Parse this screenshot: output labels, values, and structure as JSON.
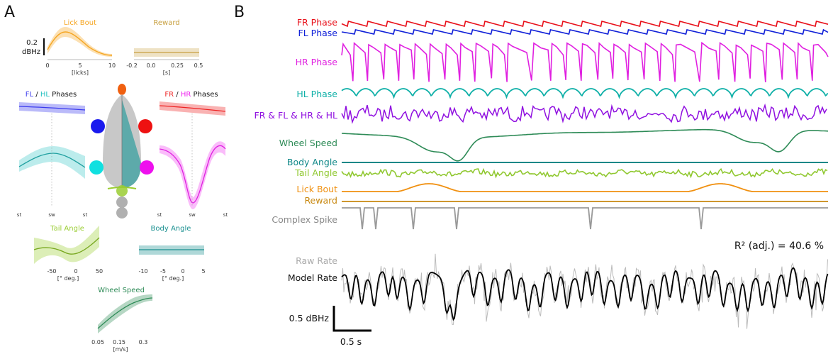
{
  "panel_a": {
    "label": "A",
    "lick_bout": {
      "title": "Lick Bout",
      "scale_value": "0.2",
      "scale_unit": "dBHz",
      "ticks": [
        "0",
        "5",
        "10"
      ],
      "unit": "[licks]",
      "color": "#f5a623"
    },
    "reward": {
      "title": "Reward",
      "ticks": [
        "-0.2",
        "0.0",
        "0.25",
        "0.5"
      ],
      "unit": "[s]",
      "color": "#c8a040"
    },
    "fl_hl": {
      "title_a": "FL",
      "sep": " / ",
      "title_b": "HL",
      "title_c": " Phases",
      "color_a": "#3a3aee",
      "color_b": "#20c0c0"
    },
    "fr_hr": {
      "title_a": "FR",
      "sep": " / ",
      "title_b": "HR",
      "title_c": " Phases",
      "color_a": "#ee2222",
      "color_b": "#ee22ee"
    },
    "phase_ticks": [
      "st",
      "sw",
      "st"
    ],
    "tail_angle": {
      "title": "Tail Angle",
      "ticks": [
        "-50",
        "0",
        "50"
      ],
      "unit": "[° deg.]",
      "color": "#9acd32"
    },
    "body_angle": {
      "title": "Body Angle",
      "ticks": [
        "-10",
        "-5",
        "0",
        "5"
      ],
      "unit": "[° deg.]",
      "color": "#1a9090"
    },
    "wheel_speed": {
      "title": "Wheel Speed",
      "ticks": [
        "0.05",
        "0.15",
        "0.3"
      ],
      "unit": "[m/s]",
      "color": "#2e8b57"
    }
  },
  "panel_b": {
    "label": "B",
    "traces": [
      {
        "name": "FR Phase",
        "color": "#e8101a"
      },
      {
        "name": "FL Phase",
        "color": "#1020d8"
      },
      {
        "name": "HR Phase",
        "color": "#e020e0"
      },
      {
        "name": "HL Phase",
        "color": "#10b0a8"
      },
      {
        "name": "FR & FL & HR & HL",
        "color": "#9010e0"
      },
      {
        "name": "Wheel Speed",
        "color": "#2e8b57"
      },
      {
        "name": "Body Angle",
        "color": "#108888"
      },
      {
        "name": "Tail Angle",
        "color": "#90c830"
      },
      {
        "name": "Lick Bout",
        "color": "#f09010"
      },
      {
        "name": "Reward",
        "color": "#c88810"
      },
      {
        "name": "Complex Spike",
        "color": "#999999"
      }
    ],
    "r2_label": "R² (adj.) = 40.6 %",
    "raw_rate_label": "Raw Rate",
    "model_rate_label": "Model Rate",
    "scale_y": "0.5 dBHz",
    "scale_x": "0.5 s",
    "raw_color": "#bbbbbb",
    "model_color": "#000000"
  }
}
